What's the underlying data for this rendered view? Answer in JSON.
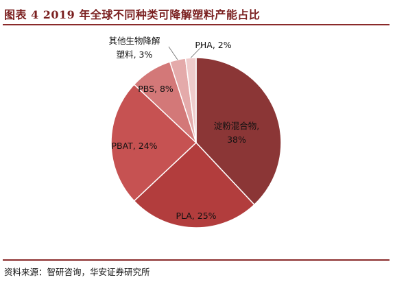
{
  "title": "图表 4 2019 年全球不同种类可降解塑料产能占比",
  "source": "资料来源：智研咨询，华安证券研究所",
  "chart_data": {
    "type": "pie",
    "start_angle_deg": 0,
    "direction": "clockwise",
    "slices": [
      {
        "label": "淀粉混合物",
        "value": 38,
        "display": "淀粉混合物,\n38%",
        "color": "#8b3636"
      },
      {
        "label": "PLA",
        "value": 25,
        "display": "PLA, 25%",
        "color": "#b23d3d"
      },
      {
        "label": "PBAT",
        "value": 24,
        "display": "PBAT, 24%",
        "color": "#c65252"
      },
      {
        "label": "PBS",
        "value": 8,
        "display": "PBS, 8%",
        "color": "#d37878"
      },
      {
        "label": "其他生物降解塑料",
        "value": 3,
        "display": "其他生物降解\n塑料, 3%",
        "color": "#e4aaaa"
      },
      {
        "label": "PHA",
        "value": 2,
        "display": "PHA, 2%",
        "color": "#efcccc"
      }
    ]
  }
}
